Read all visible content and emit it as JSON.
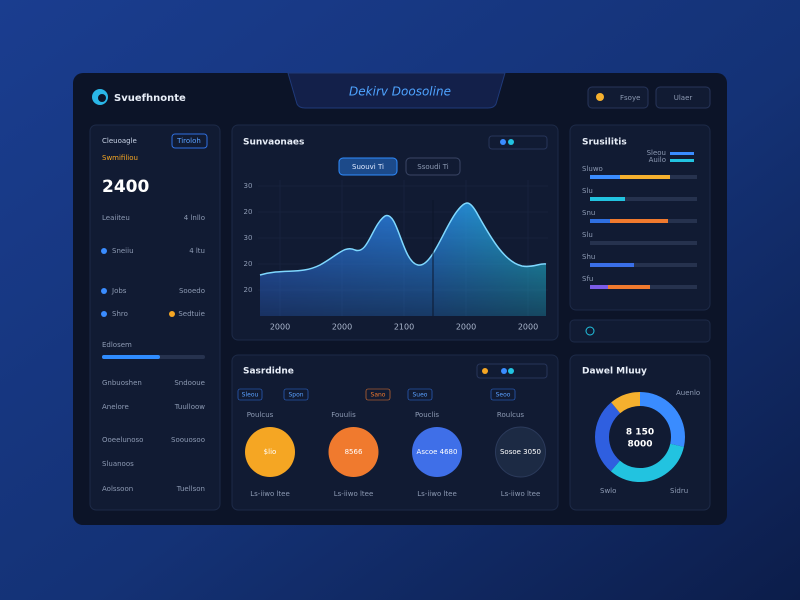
{
  "header": {
    "brand": "Svuefhnonte",
    "title": "Dekirv Doosoline",
    "buttons": [
      "Fsoye",
      "Ulaer"
    ]
  },
  "sidebar": {
    "title": "Cleuoagle",
    "button": "Tiroloh",
    "caption": "Swmifiliou",
    "big_value": "2400",
    "rows": [
      [
        "Leaiiteu",
        "4 lnllo"
      ],
      [
        "Sneiiu",
        "4 ltu"
      ],
      [
        "Jobs",
        "Sooedo"
      ],
      [
        "Shro",
        "Sedtuie"
      ],
      [
        "Edlosem",
        ""
      ],
      [
        "Gnbuoshen",
        "Sndooue"
      ],
      [
        "Anelore",
        "Tuulloow"
      ],
      [
        "Ooeelunoso",
        "Soouosoo"
      ],
      [
        "Sluanoos",
        ""
      ],
      [
        "Aolssoon",
        "Tuellson"
      ]
    ]
  },
  "main_chart": {
    "title": "Sunvaonaes",
    "buttons": [
      "Suouvi Ti",
      "Ssoudi Ti"
    ],
    "y_labels": [
      "30",
      "20",
      "30",
      "20",
      "20"
    ],
    "x_labels": [
      "2000",
      "2000",
      "2100",
      "2000",
      "2000"
    ]
  },
  "stats": {
    "title": "Srusilitis",
    "legend": [
      "Sleou",
      "Auilo"
    ],
    "rows": [
      "Sluwo",
      "Slu",
      "Snu",
      "Slu",
      "Shu",
      "Sfu"
    ]
  },
  "cards": {
    "title": "Sasrdidne",
    "tabs": [
      "Sleou",
      "Spon",
      "Sano",
      "Sueo",
      "Seoo"
    ],
    "items": [
      {
        "label": "Poulcus",
        "value": "$lio",
        "footer": "Ls-iiwo ltee"
      },
      {
        "label": "Fouulis",
        "value": "8566",
        "footer": "Ls-iiwo ltee"
      },
      {
        "label": "Pouclis",
        "value": "Ascoe 4680",
        "footer": "Ls-iiwo ltee"
      },
      {
        "label": "Roulcus",
        "value": "Sosoe 3050",
        "footer": "Ls-iiwo ltee"
      }
    ]
  },
  "donut": {
    "title": "Dawel Mluuy",
    "center": [
      "8 150",
      "8000"
    ],
    "legend": [
      "Auenlo",
      "Swlo",
      "Sidru"
    ]
  }
}
